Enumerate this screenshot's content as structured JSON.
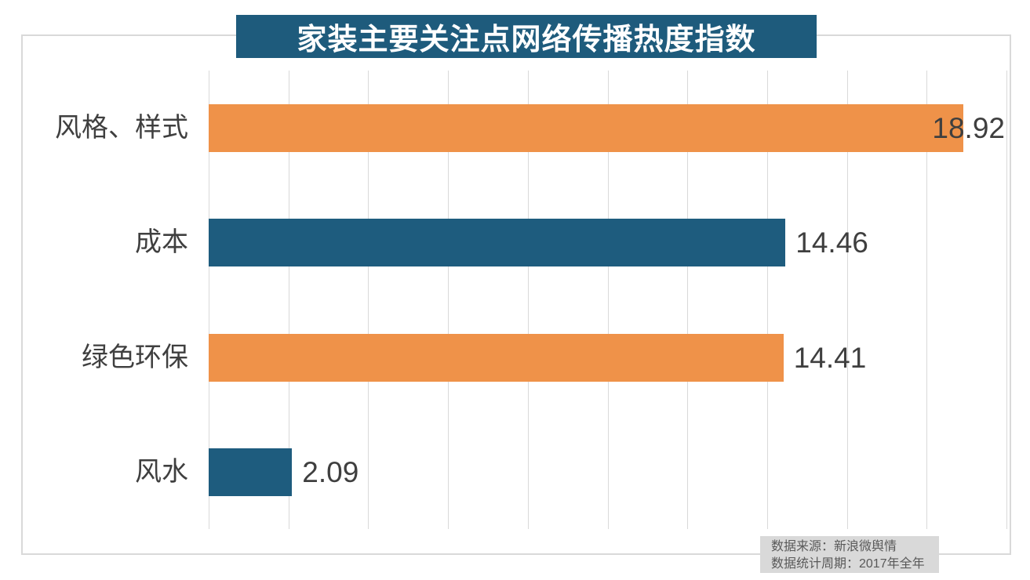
{
  "chart_data": {
    "type": "bar",
    "orientation": "horizontal",
    "title": "家装主要关注点网络传播热度指数",
    "categories": [
      "风格、样式",
      "成本",
      "绿色环保",
      "风水"
    ],
    "values": [
      18.92,
      14.46,
      14.41,
      2.09
    ],
    "value_labels": [
      "18.92",
      "14.46",
      "14.41",
      "2.09"
    ],
    "bar_colors": [
      "#ef9249",
      "#1e5c7e",
      "#ef9249",
      "#1e5c7e"
    ],
    "xlim": [
      0,
      20
    ],
    "grid_interval": 2,
    "grid": "vertical-lines",
    "legend": "none",
    "xlabel": "",
    "ylabel": ""
  },
  "source_note": {
    "line1": "数据来源：新浪微舆情",
    "line2": "数据统计周期：2017年全年"
  },
  "colors": {
    "title_bg": "#1e5b7c",
    "title_text": "#ffffff",
    "bar_orange": "#ef9249",
    "bar_teal": "#1e5c7e",
    "gridline": "#d9d9d9",
    "frame_border": "#d9d9d9",
    "label_text": "#3f3f3f",
    "source_bg": "#d9d9d9",
    "source_text": "#595959"
  }
}
